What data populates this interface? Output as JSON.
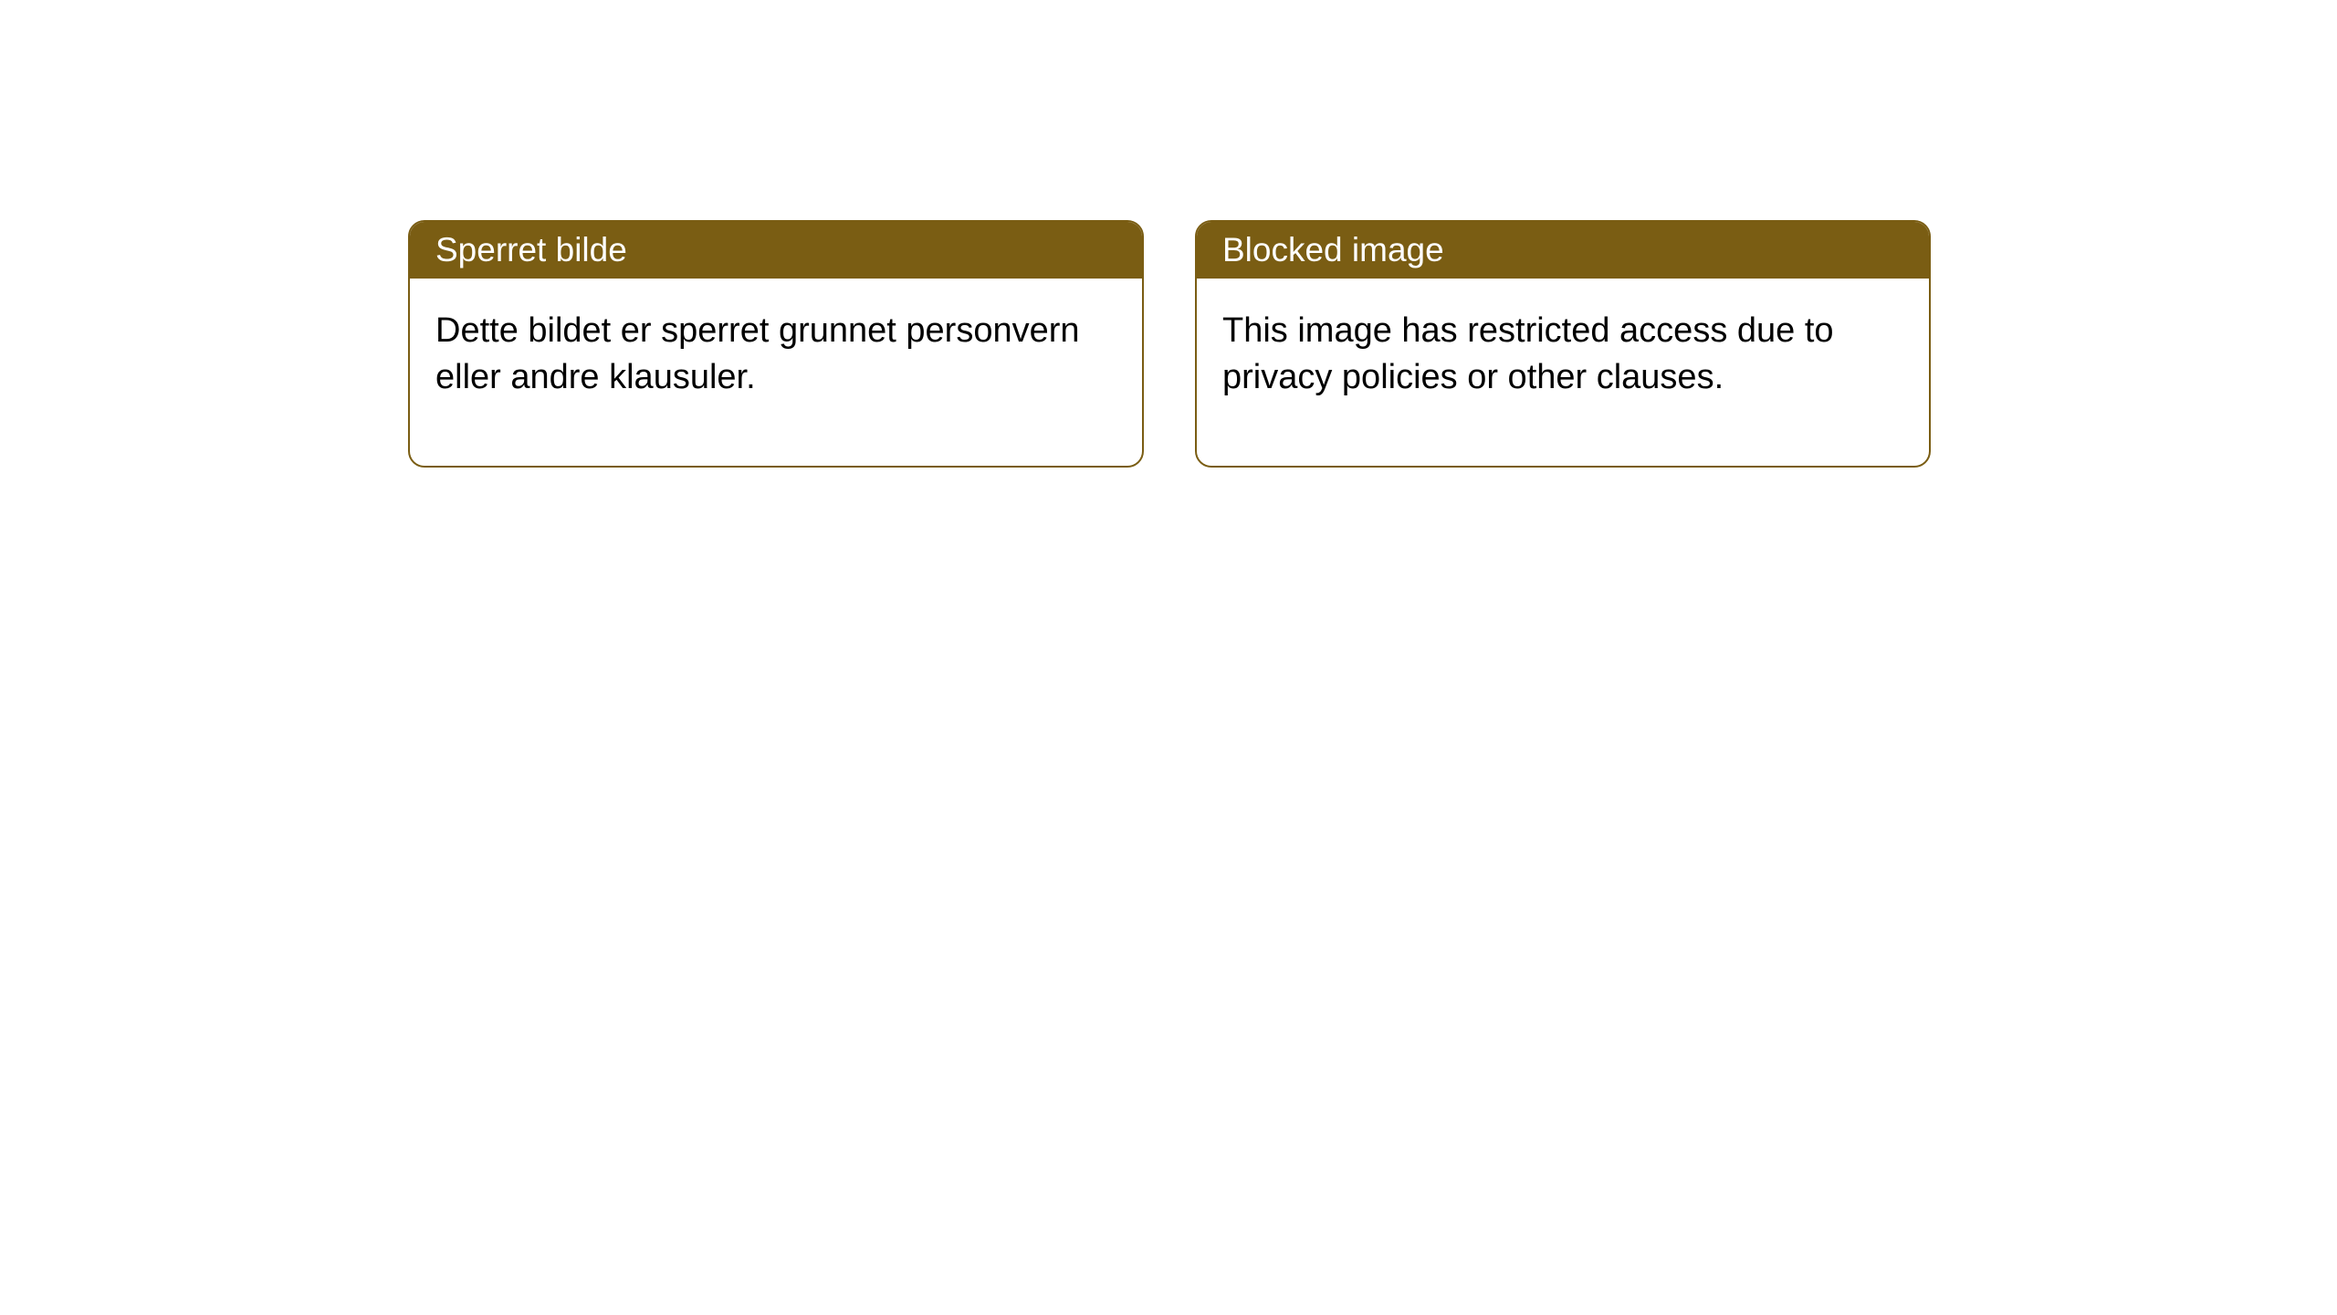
{
  "cards": [
    {
      "title": "Sperret bilde",
      "body": "Dette bildet er sperret grunnet personvern eller andre klausuler."
    },
    {
      "title": "Blocked image",
      "body": "This image has restricted access due to privacy policies or other clauses."
    }
  ],
  "style": {
    "header_bg": "#7a5d13",
    "header_text_color": "#ffffff",
    "border_color": "#7a5d13",
    "body_text_color": "#000000",
    "background_color": "#ffffff",
    "border_radius": 18,
    "title_fontsize": 37,
    "body_fontsize": 38
  }
}
